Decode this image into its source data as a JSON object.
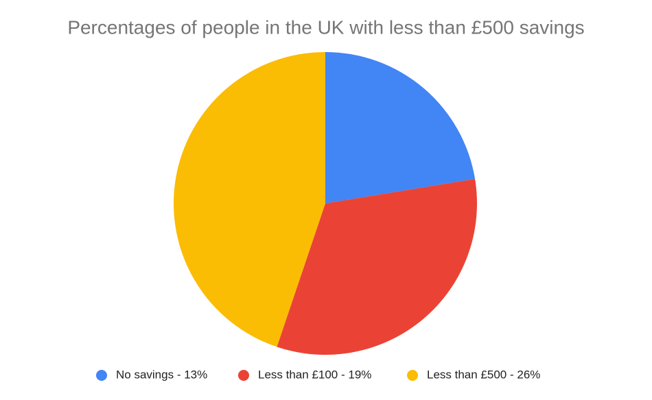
{
  "chart_data": {
    "type": "pie",
    "title": "Percentages of people in the UK with less than £500 savings",
    "categories": [
      "No savings - 13%",
      "Less than £100 - 19%",
      "Less than £500 - 26%"
    ],
    "values": [
      13,
      19,
      26
    ],
    "colors": [
      "#4285f4",
      "#ea4335",
      "#fbbc04"
    ],
    "legend": "bottom"
  }
}
